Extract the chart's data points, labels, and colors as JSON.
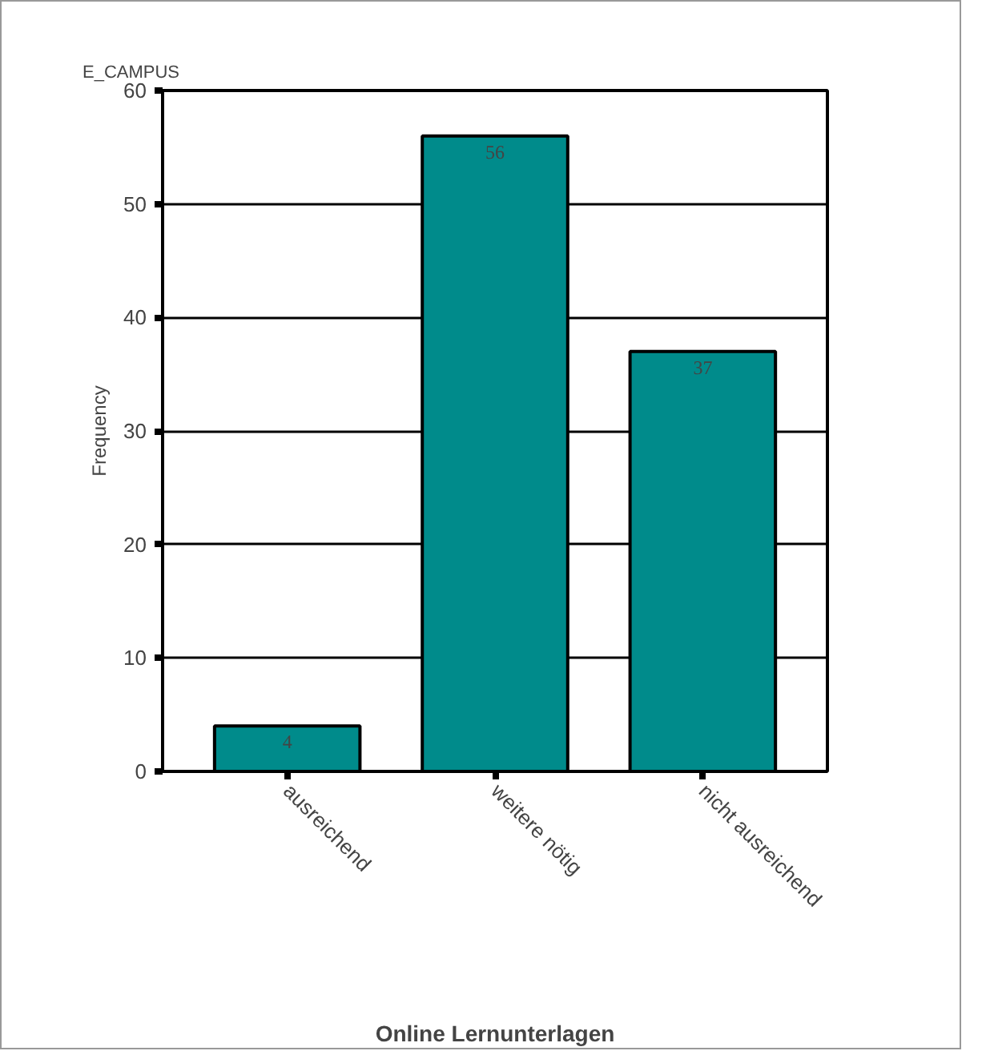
{
  "chart_data": {
    "type": "bar",
    "title": "E_CAMPUS",
    "xlabel": "Online Lernunterlagen",
    "ylabel": "Frequency",
    "categories": [
      "ausreichend",
      "weitere nötig",
      "nicht ausreichend"
    ],
    "values": [
      4,
      56,
      37
    ],
    "color": "#008b8b",
    "ylim": [
      0,
      60
    ],
    "yticks": [
      0,
      10,
      20,
      30,
      40,
      50,
      60
    ],
    "grid": "y",
    "data_labels": true
  }
}
